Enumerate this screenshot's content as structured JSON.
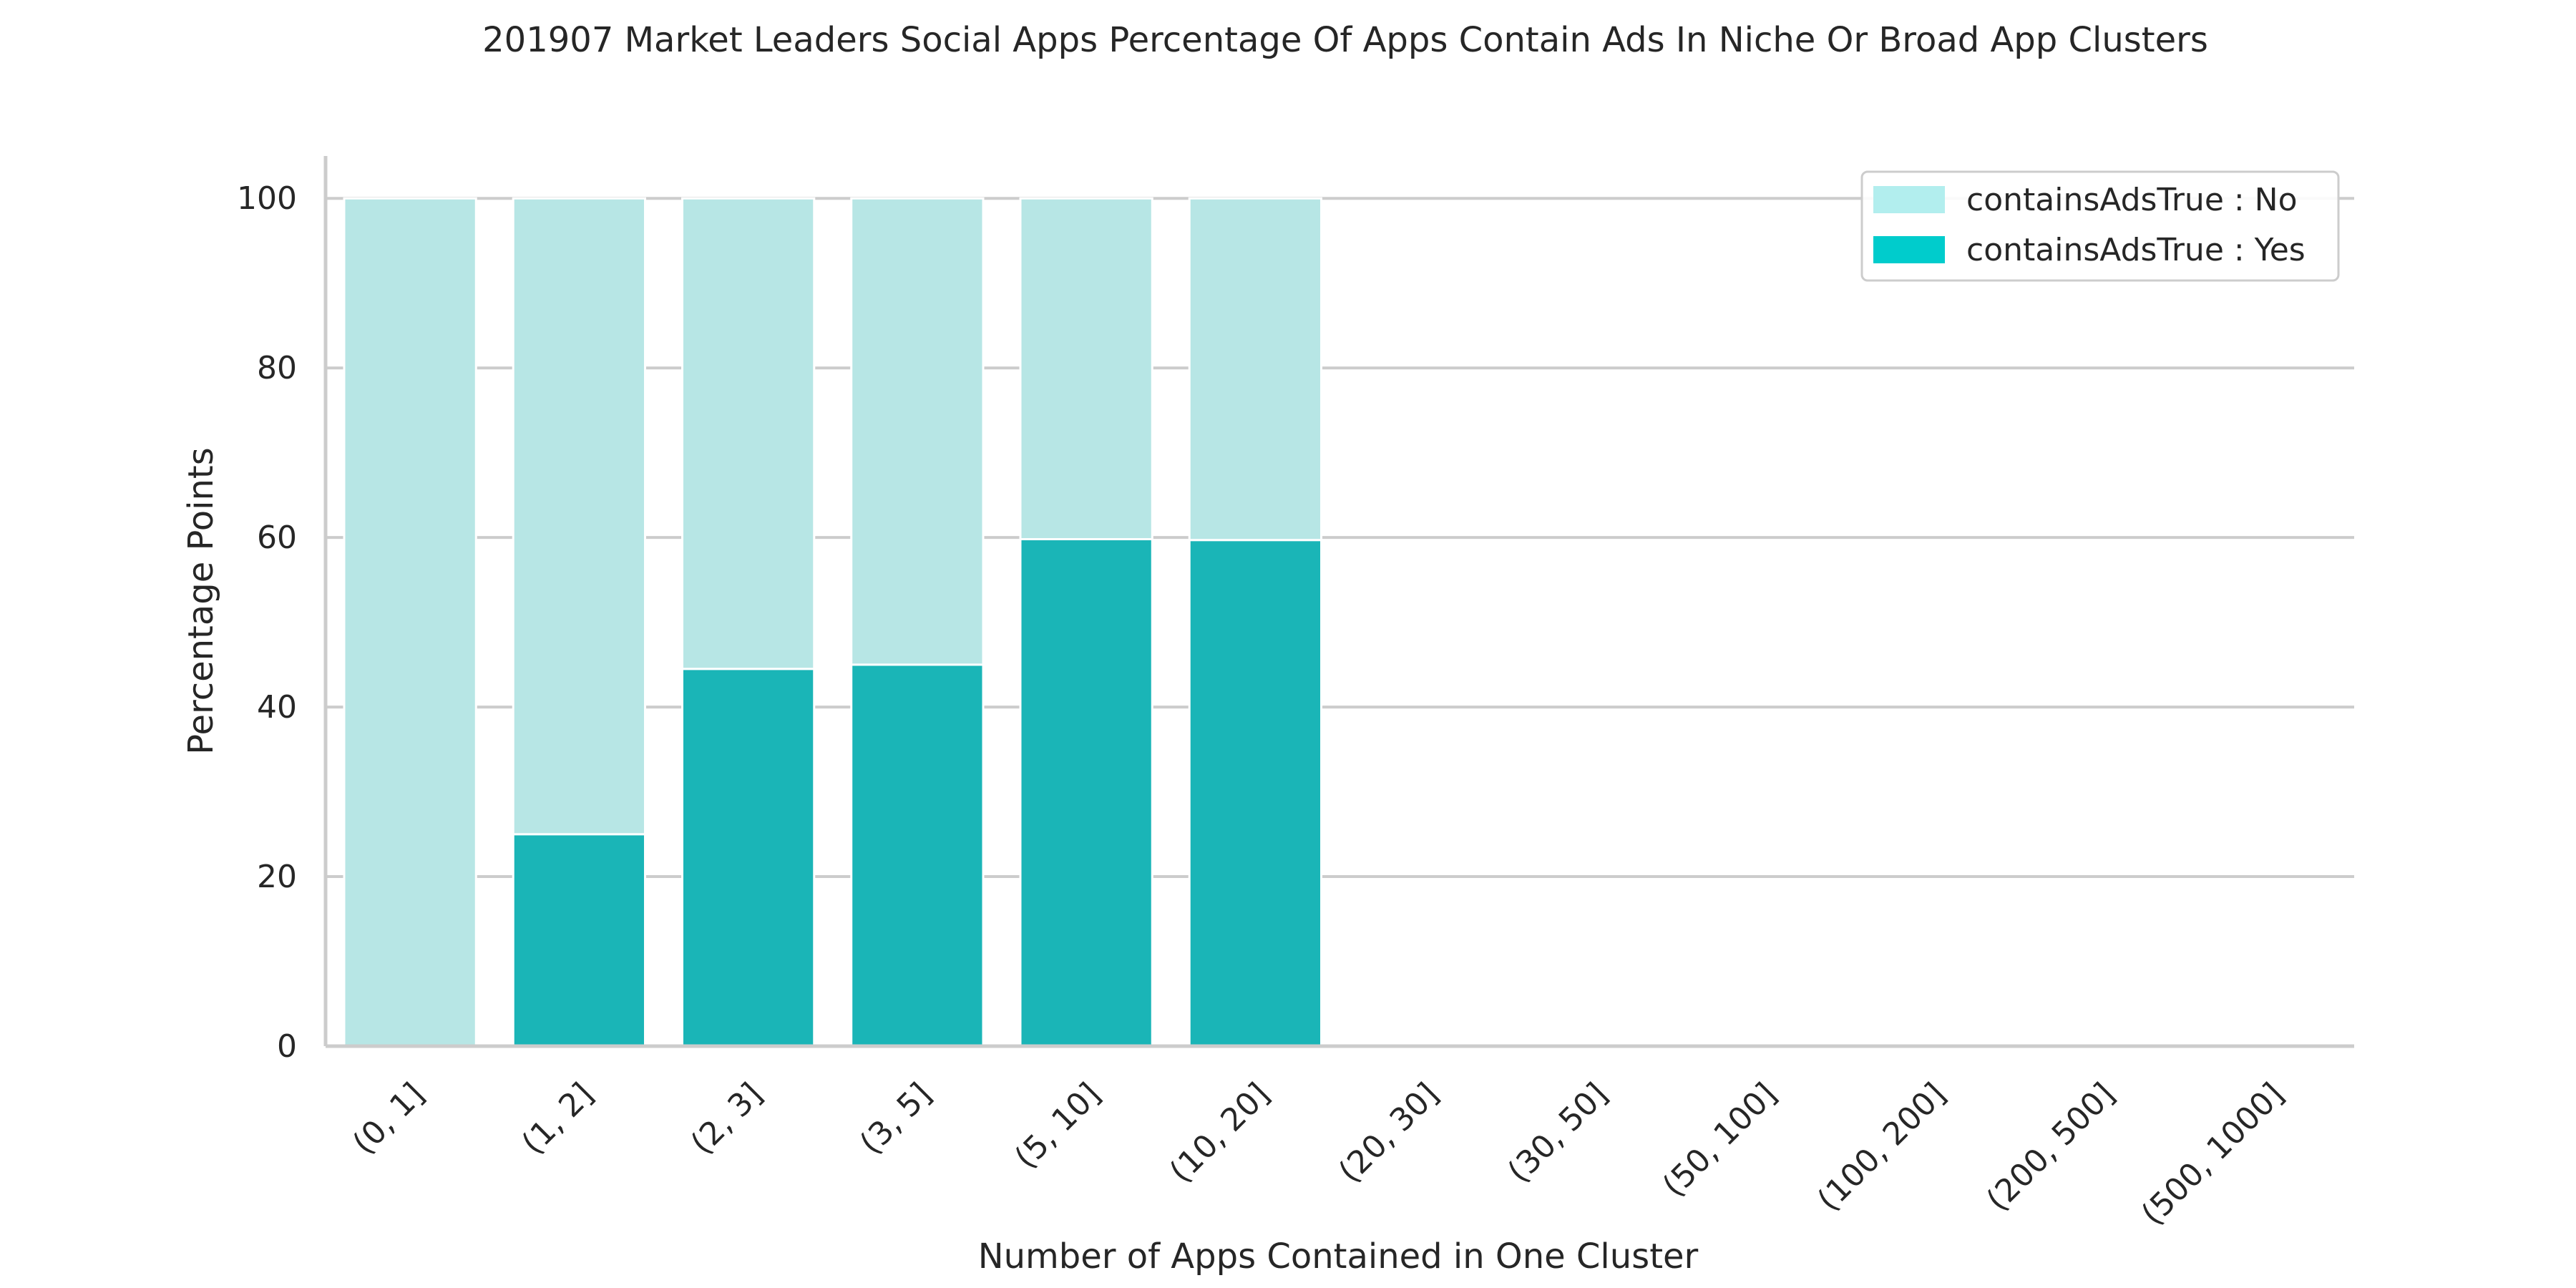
{
  "chart_data": {
    "type": "bar",
    "stacked": true,
    "title": "201907 Market Leaders Social Apps Percentage Of Apps Contain Ads In Niche Or Broad App Clusters",
    "xlabel": "Number of Apps Contained in One Cluster",
    "ylabel": "Percentage Points",
    "ylim": [
      0,
      105
    ],
    "yticks": [
      0,
      20,
      40,
      60,
      80,
      100
    ],
    "grid": true,
    "legend_position": "top-right",
    "categories": [
      "(0, 1]",
      "(1, 2]",
      "(2, 3]",
      "(3, 5]",
      "(5, 10]",
      "(10, 20]",
      "(20, 30]",
      "(30, 50]",
      "(50, 100]",
      "(100, 200]",
      "(200, 500]",
      "(500, 1000]"
    ],
    "series": [
      {
        "name": "containsAdsTrue : Yes",
        "legend_color": "#00cccc",
        "color": "#1ab5b7",
        "values": [
          0,
          25,
          44.5,
          45,
          59.8,
          59.7,
          0,
          0,
          0,
          0,
          0,
          0
        ]
      },
      {
        "name": "containsAdsTrue : No",
        "legend_color": "#b2eeee",
        "color": "#b7e6e5",
        "values": [
          100,
          75,
          55.5,
          55,
          40.2,
          40.3,
          0,
          0,
          0,
          0,
          0,
          0
        ]
      }
    ],
    "legend_order": [
      "containsAdsTrue : No",
      "containsAdsTrue : Yes"
    ]
  }
}
